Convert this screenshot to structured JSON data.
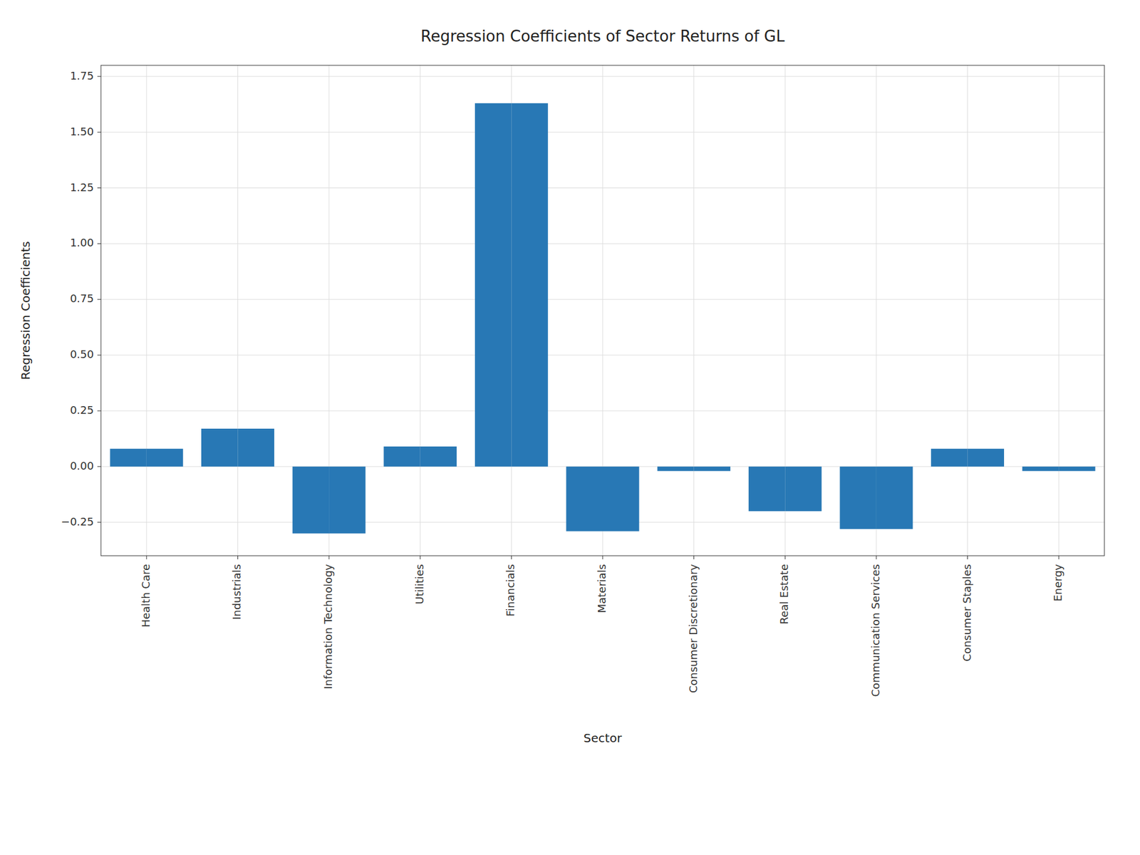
{
  "chart_data": {
    "type": "bar",
    "title": "Regression Coefficients of Sector Returns of GL",
    "xlabel": "Sector",
    "ylabel": "Regression Coefficients",
    "categories": [
      "Health Care",
      "Industrials",
      "Information Technology",
      "Utilities",
      "Financials",
      "Materials",
      "Consumer Discretionary",
      "Real Estate",
      "Communication Services",
      "Consumer Staples",
      "Energy"
    ],
    "values": [
      0.08,
      0.17,
      -0.3,
      0.09,
      1.63,
      -0.29,
      -0.02,
      -0.2,
      -0.28,
      0.08,
      -0.02
    ],
    "color": "#2878b5",
    "ylim": [
      -0.4,
      1.8
    ],
    "yticks": [
      {
        "value": -0.25,
        "label": "−0.25"
      },
      {
        "value": 0,
        "label": "0.00"
      },
      0.25,
      {
        "value": 0.5,
        "label": "0.50"
      },
      0.75,
      {
        "value": 1,
        "label": "1.00"
      },
      1.25,
      {
        "value": 1.5,
        "label": "1.50"
      },
      1.75
    ],
    "grid": true
  }
}
